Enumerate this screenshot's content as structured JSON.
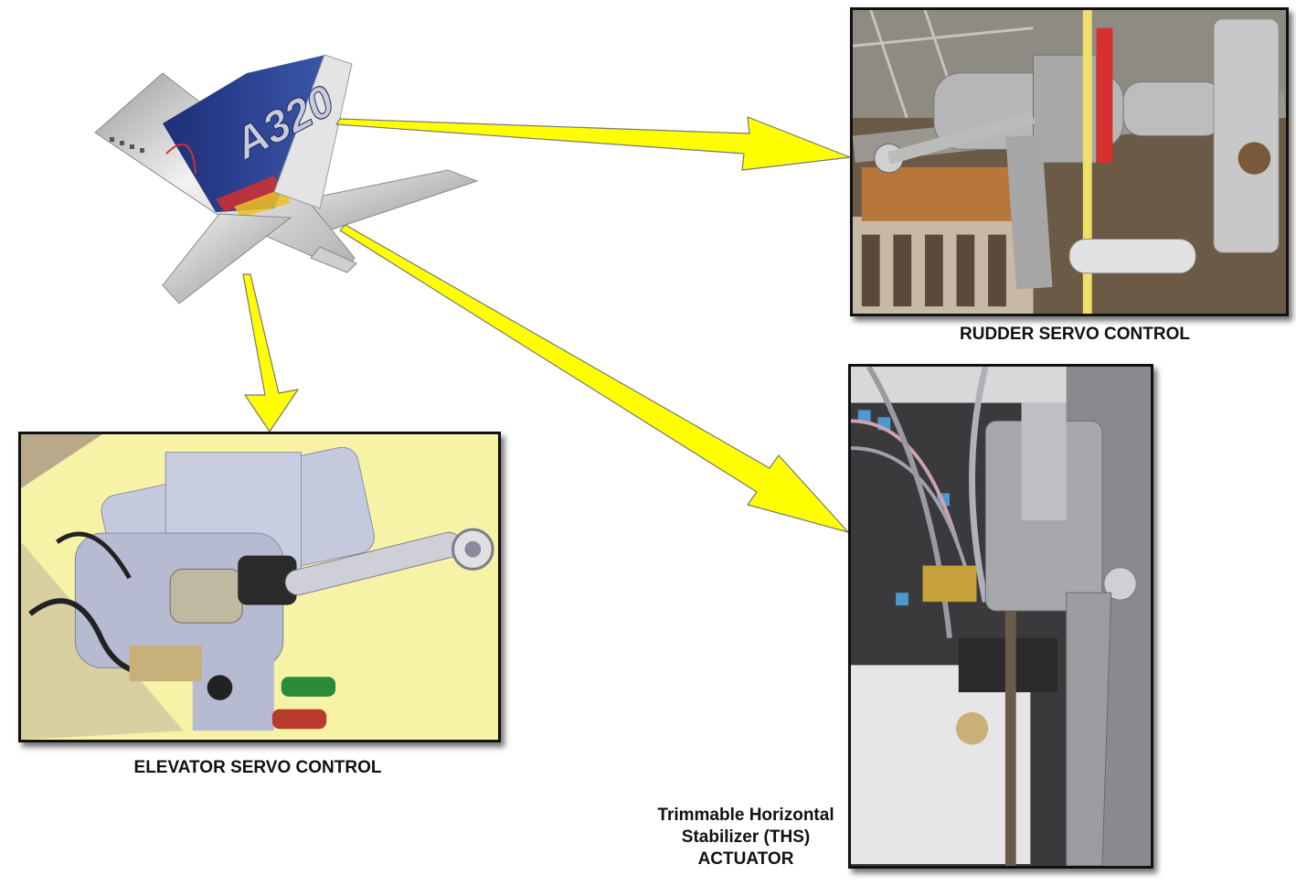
{
  "aircraft": {
    "tail_marking": "A320",
    "colors": {
      "fuselage": "#d8d8d8",
      "tail_blue": "#2a3f8a",
      "stabilizer": "#cfcfcf",
      "accent_red": "#d03030",
      "accent_yellow": "#f0c020"
    }
  },
  "arrows": {
    "fill": "#ffff00",
    "stroke": "#777777"
  },
  "panels": {
    "rudder": {
      "caption": "RUDDER SERVO CONTROL"
    },
    "elevator": {
      "caption": "ELEVATOR SERVO CONTROL"
    },
    "ths": {
      "caption_lines": [
        "Trimmable Horizontal",
        "Stabilizer (THS)",
        "ACTUATOR"
      ]
    }
  }
}
